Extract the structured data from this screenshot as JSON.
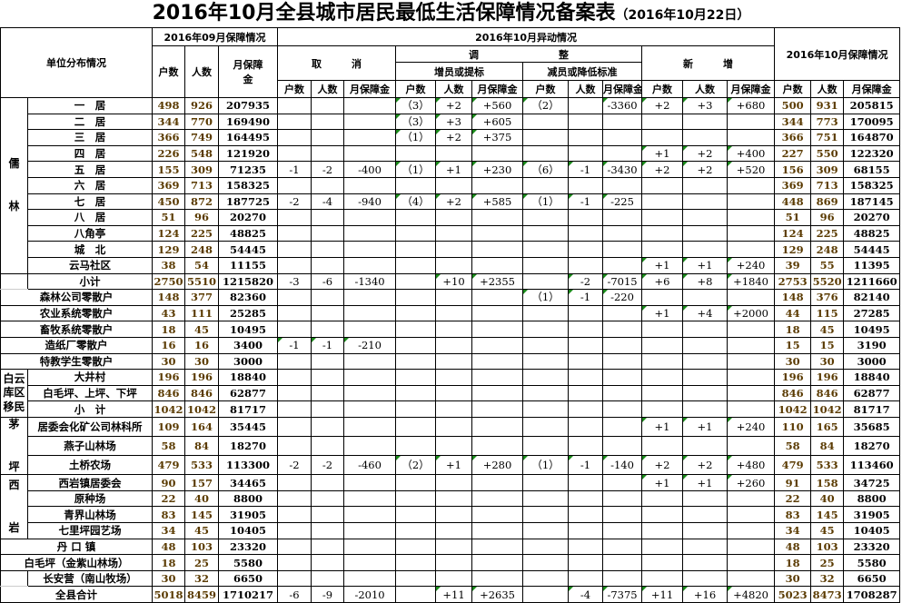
{
  "title": {
    "main": "2016年10月全县城市居民最低生活保障情况备案表",
    "date": "（2016年10月22日）"
  },
  "header": {
    "unit": "单位分布情况",
    "sep_status": "2016年09月保障情况",
    "oct_change": "2016年10月异动情况",
    "oct_status": "2016年10月保障情况",
    "cancel": "取　　　消",
    "adjust": "调　　　　　　　　整",
    "increase": "增员或提标",
    "decrease": "减员或降低标准",
    "new": "新　　　增",
    "households": "户数",
    "persons": "人数",
    "fund": "月保障金",
    "fund_sep": "月保障金"
  },
  "colors": {
    "flag": "#1a8a1a",
    "text": "#000000",
    "number_brown": "#5a3a00"
  },
  "sections": [
    {
      "group": "儒林",
      "rows": [
        {
          "name": "一　居",
          "cells": [
            "498",
            "926",
            "207935",
            "",
            "",
            "",
            "（3）",
            "+2",
            "+560",
            "（2）",
            "",
            "-3360",
            "+2",
            "+3",
            "+680",
            "500",
            "931",
            "205815"
          ]
        },
        {
          "name": "二　居",
          "cells": [
            "344",
            "770",
            "169490",
            "",
            "",
            "",
            "（3）",
            "+3",
            "+605",
            "",
            "",
            "",
            "",
            "",
            "",
            "344",
            "773",
            "170095"
          ]
        },
        {
          "name": "三　居",
          "cells": [
            "366",
            "749",
            "164495",
            "",
            "",
            "",
            "（1）",
            "+2",
            "+375",
            "",
            "",
            "",
            "",
            "",
            "",
            "366",
            "751",
            "164870"
          ]
        },
        {
          "name": "四　居",
          "cells": [
            "226",
            "548",
            "121920",
            "",
            "",
            "",
            "",
            "",
            "",
            "",
            "",
            "",
            "+1",
            "+2",
            "+400",
            "227",
            "550",
            "122320"
          ]
        },
        {
          "name": "五　居",
          "cells": [
            "155",
            "309",
            "71235",
            "-1",
            "-2",
            "-400",
            "（1）",
            "+1",
            "+230",
            "（6）",
            "-1",
            "-3430",
            "+2",
            "+2",
            "+520",
            "156",
            "309",
            "68155"
          ]
        },
        {
          "name": "六　居",
          "cells": [
            "369",
            "713",
            "158325",
            "",
            "",
            "",
            "",
            "",
            "",
            "",
            "",
            "",
            "",
            "",
            "",
            "369",
            "713",
            "158325"
          ]
        },
        {
          "name": "七　居",
          "cells": [
            "450",
            "872",
            "187725",
            "-2",
            "-4",
            "-940",
            "（4）",
            "+2",
            "+585",
            "（1）",
            "-1",
            "-225",
            "",
            "",
            "",
            "448",
            "869",
            "187145"
          ]
        },
        {
          "name": "八　居",
          "cells": [
            "51",
            "96",
            "20270",
            "",
            "",
            "",
            "",
            "",
            "",
            "",
            "",
            "",
            "",
            "",
            "",
            "51",
            "96",
            "20270"
          ]
        },
        {
          "name": "八角亭",
          "cells": [
            "124",
            "225",
            "48825",
            "",
            "",
            "",
            "",
            "",
            "",
            "",
            "",
            "",
            "",
            "",
            "",
            "124",
            "225",
            "48825"
          ]
        },
        {
          "name": "城　北",
          "cells": [
            "129",
            "248",
            "54445",
            "",
            "",
            "",
            "",
            "",
            "",
            "",
            "",
            "",
            "",
            "",
            "",
            "129",
            "248",
            "54445"
          ]
        },
        {
          "name": "云马社区",
          "cells": [
            "38",
            "54",
            "11155",
            "",
            "",
            "",
            "",
            "",
            "",
            "",
            "",
            "",
            "+1",
            "+1",
            "+240",
            "39",
            "55",
            "11395"
          ]
        }
      ]
    },
    {
      "blank_left": true,
      "rows": [
        {
          "name": "小计",
          "cells": [
            "2750",
            "5510",
            "1215820",
            "-3",
            "-6",
            "-1340",
            "",
            "+10",
            "+2355",
            "",
            "-2",
            "-7015",
            "+6",
            "+8",
            "+1840",
            "2753",
            "5520",
            "1211660"
          ]
        }
      ]
    },
    {
      "rows": [
        {
          "name": "森林公司零散户",
          "cells": [
            "148",
            "377",
            "82360",
            "",
            "",
            "",
            "",
            "",
            "",
            "（1）",
            "-1",
            "-220",
            "",
            "",
            "",
            "148",
            "376",
            "82140"
          ]
        },
        {
          "name": "农业系统零散户",
          "cells": [
            "43",
            "111",
            "25285",
            "",
            "",
            "",
            "",
            "",
            "",
            "",
            "",
            "",
            "+1",
            "+4",
            "+2000",
            "44",
            "115",
            "27285"
          ]
        },
        {
          "name": "畜牧系统零散户",
          "cells": [
            "18",
            "45",
            "10495",
            "",
            "",
            "",
            "",
            "",
            "",
            "",
            "",
            "",
            "",
            "",
            "",
            "18",
            "45",
            "10495"
          ]
        },
        {
          "name": "造纸厂零散户",
          "cells": [
            "16",
            "16",
            "3400",
            "-1",
            "-1",
            "-210",
            "",
            "",
            "",
            "",
            "",
            "",
            "",
            "",
            "",
            "15",
            "15",
            "3190"
          ]
        },
        {
          "name": "特教学生零散户",
          "cells": [
            "30",
            "30",
            "3000",
            "",
            "",
            "",
            "",
            "",
            "",
            "",
            "",
            "",
            "",
            "",
            "",
            "30",
            "30",
            "3000"
          ]
        }
      ]
    },
    {
      "group": "白云库区移民",
      "rows": [
        {
          "name": "大井村",
          "cells": [
            "196",
            "196",
            "18840",
            "",
            "",
            "",
            "",
            "",
            "",
            "",
            "",
            "",
            "",
            "",
            "",
            "196",
            "196",
            "18840"
          ]
        },
        {
          "name": "白毛坪、上坪、下坪",
          "cells": [
            "846",
            "846",
            "62877",
            "",
            "",
            "",
            "",
            "",
            "",
            "",
            "",
            "",
            "",
            "",
            "",
            "846",
            "846",
            "62877"
          ]
        },
        {
          "name": "小　计",
          "cells": [
            "1042",
            "1042",
            "81717",
            "",
            "",
            "",
            "",
            "",
            "",
            "",
            "",
            "",
            "",
            "",
            "",
            "1042",
            "1042",
            "81717"
          ]
        }
      ]
    },
    {
      "group": "茅坪",
      "rows": [
        {
          "name": "居委会化矿公司林科所",
          "cells": [
            "109",
            "164",
            "35445",
            "",
            "",
            "",
            "",
            "",
            "",
            "",
            "",
            "",
            "+1",
            "+1",
            "+240",
            "110",
            "165",
            "35685"
          ]
        },
        {
          "name": "燕子山林场",
          "cells": [
            "58",
            "84",
            "18270",
            "",
            "",
            "",
            "",
            "",
            "",
            "",
            "",
            "",
            "",
            "",
            "",
            "58",
            "84",
            "18270"
          ]
        },
        {
          "name": "土桥农场",
          "cells": [
            "479",
            "533",
            "113300",
            "-2",
            "-2",
            "-460",
            "（2）",
            "+1",
            "+280",
            "（1）",
            "-1",
            "-140",
            "+2",
            "+2",
            "+480",
            "479",
            "533",
            "113460"
          ]
        }
      ]
    },
    {
      "group": "西岩",
      "rows": [
        {
          "name": "西岩镇居委会",
          "cells": [
            "90",
            "157",
            "34465",
            "",
            "",
            "",
            "",
            "",
            "",
            "",
            "",
            "",
            "+1",
            "+1",
            "+260",
            "91",
            "158",
            "34725"
          ]
        },
        {
          "name": "原种场",
          "cells": [
            "22",
            "40",
            "8800",
            "",
            "",
            "",
            "",
            "",
            "",
            "",
            "",
            "",
            "",
            "",
            "",
            "22",
            "40",
            "8800"
          ]
        },
        {
          "name": "青界山林场",
          "cells": [
            "83",
            "145",
            "31905",
            "",
            "",
            "",
            "",
            "",
            "",
            "",
            "",
            "",
            "",
            "",
            "",
            "83",
            "145",
            "31905"
          ]
        },
        {
          "name": "七里坪园艺场",
          "cells": [
            "34",
            "45",
            "10405",
            "",
            "",
            "",
            "",
            "",
            "",
            "",
            "",
            "",
            "",
            "",
            "",
            "34",
            "45",
            "10405"
          ]
        }
      ]
    },
    {
      "rows": [
        {
          "name": "丹 口 镇",
          "cells": [
            "48",
            "103",
            "23320",
            "",
            "",
            "",
            "",
            "",
            "",
            "",
            "",
            "",
            "",
            "",
            "",
            "48",
            "103",
            "23320"
          ]
        },
        {
          "name": "白毛坪（金紫山林场）",
          "cells": [
            "18",
            "25",
            "5580",
            "",
            "",
            "",
            "",
            "",
            "",
            "",
            "",
            "",
            "",
            "",
            "",
            "18",
            "25",
            "5580"
          ]
        }
      ]
    },
    {
      "blank_left": true,
      "rows": [
        {
          "name": "长安营（南山牧场）",
          "cells": [
            "30",
            "32",
            "6650",
            "",
            "",
            "",
            "",
            "",
            "",
            "",
            "",
            "",
            "",
            "",
            "",
            "30",
            "32",
            "6650"
          ]
        }
      ]
    },
    {
      "rows": [
        {
          "name": "全县合计",
          "cells": [
            "5018",
            "8459",
            "1710217",
            "-6",
            "-9",
            "-2010",
            "",
            "+11",
            "+2635",
            "",
            "-4",
            "-7375",
            "+11",
            "+16",
            "+4820",
            "5023",
            "8473",
            "1708287"
          ]
        }
      ]
    }
  ]
}
